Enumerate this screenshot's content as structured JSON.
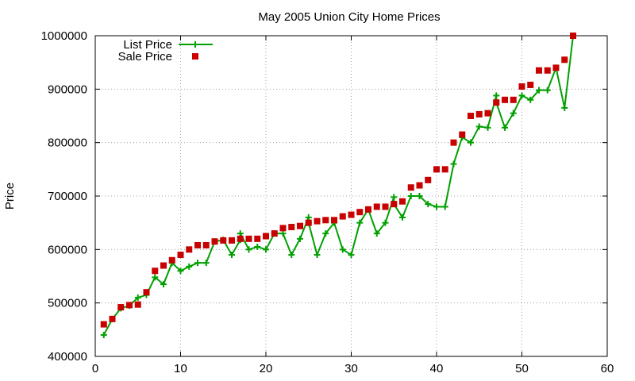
{
  "chart_data": {
    "type": "line",
    "title": "May 2005 Union City Home Prices",
    "xlabel": "",
    "ylabel": "Price",
    "xlim": [
      0,
      60
    ],
    "ylim": [
      400000,
      1000000
    ],
    "xticks": [
      0,
      10,
      20,
      30,
      40,
      50,
      60
    ],
    "yticks": [
      400000,
      500000,
      600000,
      700000,
      800000,
      900000,
      1000000
    ],
    "grid": true,
    "legend_position": "top-left",
    "colors": {
      "list": "#00a000",
      "sale": "#c80000"
    },
    "series": [
      {
        "name": "List Price",
        "style": "line-with-plus-markers",
        "x": [
          1,
          2,
          3,
          4,
          5,
          6,
          7,
          8,
          9,
          10,
          11,
          12,
          13,
          14,
          15,
          16,
          17,
          17,
          18,
          19,
          20,
          21,
          22,
          23,
          24,
          25,
          25,
          26,
          27,
          28,
          29,
          30,
          31,
          32,
          33,
          34,
          35,
          35,
          36,
          37,
          38,
          39,
          40,
          41,
          42,
          43,
          44,
          45,
          46,
          47,
          47,
          48,
          49,
          50,
          51,
          52,
          53,
          54,
          55,
          56
        ],
        "y": [
          440000,
          470000,
          490000,
          495000,
          510000,
          515000,
          548000,
          535000,
          575000,
          560000,
          568000,
          575000,
          575000,
          615000,
          618000,
          590000,
          618000,
          630000,
          600000,
          605000,
          600000,
          630000,
          630000,
          590000,
          620000,
          660000,
          650000,
          590000,
          630000,
          650000,
          600000,
          590000,
          650000,
          675000,
          630000,
          650000,
          698000,
          685000,
          660000,
          700000,
          700000,
          685000,
          680000,
          680000,
          760000,
          810000,
          800000,
          830000,
          828000,
          888000,
          875000,
          828000,
          855000,
          888000,
          880000,
          898000,
          898000,
          940000,
          865000,
          1000000
        ]
      },
      {
        "name": "Sale Price",
        "style": "square-markers",
        "x": [
          1,
          2,
          3,
          4,
          5,
          6,
          7,
          8,
          9,
          10,
          11,
          12,
          13,
          14,
          15,
          16,
          17,
          18,
          19,
          20,
          21,
          22,
          23,
          24,
          25,
          26,
          27,
          28,
          29,
          30,
          31,
          32,
          33,
          34,
          35,
          36,
          37,
          38,
          39,
          40,
          41,
          42,
          43,
          44,
          45,
          46,
          47,
          48,
          49,
          50,
          51,
          52,
          53,
          54,
          55,
          56
        ],
        "y": [
          460000,
          470000,
          492000,
          496000,
          497000,
          520000,
          560000,
          570000,
          580000,
          590000,
          600000,
          608000,
          608000,
          615000,
          617000,
          617000,
          620000,
          620000,
          620000,
          625000,
          630000,
          640000,
          642000,
          644000,
          650000,
          653000,
          655000,
          655000,
          662000,
          665000,
          670000,
          675000,
          680000,
          680000,
          685000,
          690000,
          716000,
          720000,
          730000,
          750000,
          750000,
          800000,
          815000,
          850000,
          853000,
          855000,
          875000,
          880000,
          880000,
          905000,
          908000,
          935000,
          935000,
          940000,
          955000,
          1000000
        ]
      }
    ]
  }
}
